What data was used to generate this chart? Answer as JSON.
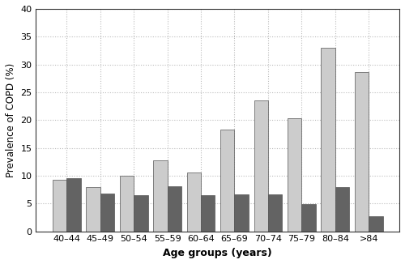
{
  "categories": [
    "40–44",
    "45–49",
    "50–54",
    "55–59",
    "60–64",
    "65–69",
    "70–74",
    "75–79",
    "80–84",
    ">84"
  ],
  "FR_values": [
    9.2,
    8.0,
    10.0,
    12.7,
    10.6,
    18.3,
    23.6,
    20.3,
    33.0,
    28.7
  ],
  "LLN_values": [
    9.6,
    6.8,
    6.5,
    8.1,
    6.5,
    6.6,
    6.6,
    4.9,
    7.9,
    2.7
  ],
  "FR_color": "#cccccc",
  "LLN_color": "#636363",
  "ylabel": "Prevalence of COPD (%)",
  "xlabel": "Age groups (years)",
  "ylim": [
    0,
    40
  ],
  "yticks": [
    0,
    5,
    10,
    15,
    20,
    25,
    30,
    35,
    40
  ],
  "bar_width": 0.42,
  "background_color": "#ffffff",
  "grid_color": "#bbbbbb",
  "edge_color": "#555555"
}
